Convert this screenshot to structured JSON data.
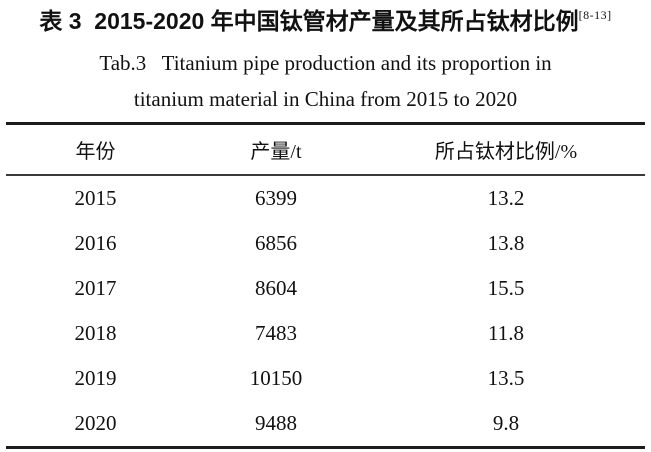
{
  "caption": {
    "zh": "表 3  2015-2020 年中国钛管材产量及其所占钛材比例",
    "reference": "[8-13]",
    "en_line1": "Tab.3   Titanium pipe production and its proportion in",
    "en_line2": "titanium material in China from 2015 to 2020"
  },
  "table": {
    "headers": [
      "年份",
      "产量/t",
      "所占钛材比例/%"
    ],
    "rows": [
      [
        "2015",
        "6399",
        "13.2"
      ],
      [
        "2016",
        "6856",
        "13.8"
      ],
      [
        "2017",
        "8604",
        "15.5"
      ],
      [
        "2018",
        "7483",
        "11.8"
      ],
      [
        "2019",
        "10150",
        "13.5"
      ],
      [
        "2020",
        "9488",
        "9.8"
      ]
    ]
  },
  "colors": {
    "text": "#111111",
    "background": "#ffffff",
    "rule_thick": "#1c1c1c",
    "rule_thin": "#3a3a3a"
  }
}
